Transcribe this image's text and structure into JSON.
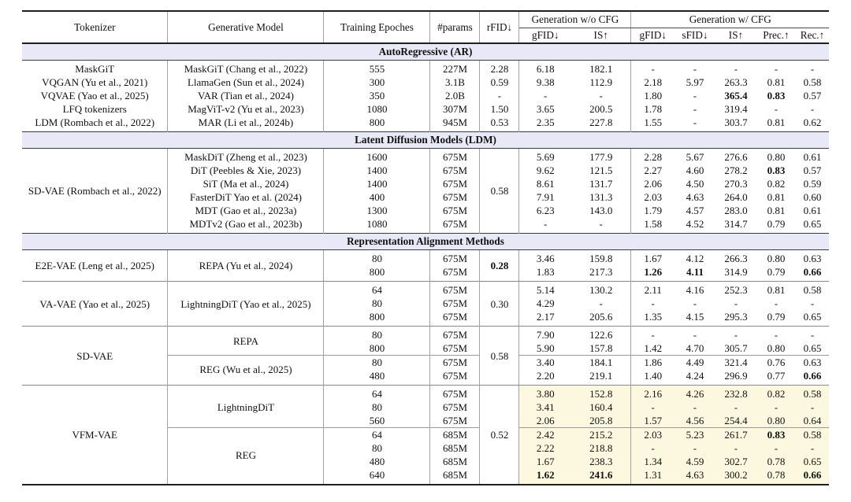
{
  "colors": {
    "section_band_bg": "#e8e8f7",
    "highlight_bg": "#fbf8df",
    "rule_dark": "#1f1f1f",
    "divider_gray": "#a3a3a3"
  },
  "table": {
    "header": {
      "col_tokenizer": "Tokenizer",
      "col_model": "Generative Model",
      "col_epochs": "Training Epoches",
      "col_params": "#params",
      "col_rfid": "rFID↓",
      "group_wo_cfg": "Generation w/o CFG",
      "group_w_cfg": "Generation w/ CFG",
      "sub_wo": [
        "gFID↓",
        "IS↑"
      ],
      "sub_w": [
        "gFID↓",
        "sFID↓",
        "IS↑",
        "Prec.↑",
        "Rec.↑"
      ]
    },
    "sections": [
      {
        "title": "AutoRegressive (AR)",
        "groups": [
          {
            "tokenizer": null,
            "rfid": null,
            "highlight": false,
            "block_seps": false,
            "blocks": [
              {
                "model": "MaskGiT (Chang et al., 2022)",
                "rows": [
                  {
                    "tokenizer": "MaskGiT",
                    "epochs": "555",
                    "params": "227M",
                    "rfid": "2.28",
                    "wo": [
                      "6.18",
                      "182.1"
                    ],
                    "w": [
                      "-",
                      "-",
                      "-",
                      "-",
                      "-"
                    ]
                  }
                ]
              },
              {
                "model": "LlamaGen (Sun et al., 2024)",
                "rows": [
                  {
                    "tokenizer": "VQGAN (Yu et al., 2021)",
                    "epochs": "300",
                    "params": "3.1B",
                    "rfid": "0.59",
                    "wo": [
                      "9.38",
                      "112.9"
                    ],
                    "w": [
                      "2.18",
                      "5.97",
                      "263.3",
                      "0.81",
                      "0.58"
                    ]
                  }
                ]
              },
              {
                "model": "VAR (Tian et al., 2024)",
                "rows": [
                  {
                    "tokenizer": "VQVAE (Yao et al., 2025)",
                    "epochs": "350",
                    "params": "2.0B",
                    "rfid": "-",
                    "wo": [
                      "-",
                      "-"
                    ],
                    "w": [
                      "1.80",
                      "-",
                      {
                        "v": "365.4",
                        "b": true
                      },
                      {
                        "v": "0.83",
                        "b": true
                      },
                      "0.57"
                    ]
                  }
                ]
              },
              {
                "model": "MagViT-v2 (Yu et al., 2023)",
                "rows": [
                  {
                    "tokenizer": "LFQ tokenizers",
                    "epochs": "1080",
                    "params": "307M",
                    "rfid": "1.50",
                    "wo": [
                      "3.65",
                      "200.5"
                    ],
                    "w": [
                      "1.78",
                      "-",
                      "319.4",
                      "-",
                      "-"
                    ]
                  }
                ]
              },
              {
                "model": "MAR (Li et al., 2024b)",
                "rows": [
                  {
                    "tokenizer": "LDM (Rombach et al., 2022)",
                    "epochs": "800",
                    "params": "945M",
                    "rfid": "0.53",
                    "wo": [
                      "2.35",
                      "227.8"
                    ],
                    "w": [
                      "1.55",
                      "-",
                      "303.7",
                      "0.81",
                      "0.62"
                    ]
                  }
                ]
              }
            ]
          }
        ]
      },
      {
        "title": "Latent Diffusion Models (LDM)",
        "groups": [
          {
            "tokenizer": "SD-VAE (Rombach et al., 2022)",
            "rfid": "0.58",
            "highlight": false,
            "block_seps": false,
            "blocks": [
              {
                "model": "MaskDiT (Zheng et al., 2023)",
                "rows": [
                  {
                    "epochs": "1600",
                    "params": "675M",
                    "wo": [
                      "5.69",
                      "177.9"
                    ],
                    "w": [
                      "2.28",
                      "5.67",
                      "276.6",
                      "0.80",
                      "0.61"
                    ]
                  }
                ]
              },
              {
                "model": "DiT (Peebles & Xie, 2023)",
                "rows": [
                  {
                    "epochs": "1400",
                    "params": "675M",
                    "wo": [
                      "9.62",
                      "121.5"
                    ],
                    "w": [
                      "2.27",
                      "4.60",
                      "278.2",
                      {
                        "v": "0.83",
                        "b": true
                      },
                      "0.57"
                    ]
                  }
                ]
              },
              {
                "model": "SiT (Ma et al., 2024)",
                "rows": [
                  {
                    "epochs": "1400",
                    "params": "675M",
                    "wo": [
                      "8.61",
                      "131.7"
                    ],
                    "w": [
                      "2.06",
                      "4.50",
                      "270.3",
                      "0.82",
                      "0.59"
                    ]
                  }
                ]
              },
              {
                "model": "FasterDiT Yao et al. (2024)",
                "rows": [
                  {
                    "epochs": "400",
                    "params": "675M",
                    "wo": [
                      "7.91",
                      "131.3"
                    ],
                    "w": [
                      "2.03",
                      "4.63",
                      "264.0",
                      "0.81",
                      "0.60"
                    ]
                  }
                ]
              },
              {
                "model": "MDT (Gao et al., 2023a)",
                "rows": [
                  {
                    "epochs": "1300",
                    "params": "675M",
                    "wo": [
                      "6.23",
                      "143.0"
                    ],
                    "w": [
                      "1.79",
                      "4.57",
                      "283.0",
                      "0.81",
                      "0.61"
                    ]
                  }
                ]
              },
              {
                "model": "MDTv2 (Gao et al., 2023b)",
                "rows": [
                  {
                    "epochs": "1080",
                    "params": "675M",
                    "wo": [
                      "-",
                      "-"
                    ],
                    "w": [
                      "1.58",
                      "4.52",
                      "314.7",
                      "0.79",
                      "0.65"
                    ]
                  }
                ]
              }
            ]
          }
        ]
      },
      {
        "title": "Representation Alignment Methods",
        "groups": [
          {
            "tokenizer": "E2E-VAE (Leng et al., 2025)",
            "rfid": {
              "v": "0.28",
              "b": true
            },
            "highlight": false,
            "block_seps": false,
            "blocks": [
              {
                "model": "REPA (Yu et al., 2024)",
                "rows": [
                  {
                    "epochs": "80",
                    "params": "675M",
                    "wo": [
                      "3.46",
                      "159.8"
                    ],
                    "w": [
                      "1.67",
                      "4.12",
                      "266.3",
                      "0.80",
                      "0.63"
                    ]
                  },
                  {
                    "epochs": "800",
                    "params": "675M",
                    "wo": [
                      "1.83",
                      "217.3"
                    ],
                    "w": [
                      {
                        "v": "1.26",
                        "b": true
                      },
                      {
                        "v": "4.11",
                        "b": true
                      },
                      "314.9",
                      "0.79",
                      {
                        "v": "0.66",
                        "b": true
                      }
                    ]
                  }
                ]
              }
            ]
          },
          {
            "tokenizer": "VA-VAE (Yao et al., 2025)",
            "rfid": "0.30",
            "highlight": false,
            "block_seps": false,
            "blocks": [
              {
                "model": "LightningDiT (Yao et al., 2025)",
                "rows": [
                  {
                    "epochs": "64",
                    "params": "675M",
                    "wo": [
                      "5.14",
                      "130.2"
                    ],
                    "w": [
                      "2.11",
                      "4.16",
                      "252.3",
                      "0.81",
                      "0.58"
                    ]
                  },
                  {
                    "epochs": "80",
                    "params": "675M",
                    "wo": [
                      "4.29",
                      "-"
                    ],
                    "w": [
                      "-",
                      "-",
                      "-",
                      "-",
                      "-"
                    ]
                  },
                  {
                    "epochs": "800",
                    "params": "675M",
                    "wo": [
                      "2.17",
                      "205.6"
                    ],
                    "w": [
                      "1.35",
                      "4.15",
                      "295.3",
                      "0.79",
                      "0.65"
                    ]
                  }
                ]
              }
            ]
          },
          {
            "tokenizer": "SD-VAE",
            "rfid": "0.58",
            "highlight": false,
            "block_seps": true,
            "blocks": [
              {
                "model": "REPA",
                "rows": [
                  {
                    "epochs": "80",
                    "params": "675M",
                    "wo": [
                      "7.90",
                      "122.6"
                    ],
                    "w": [
                      "-",
                      "-",
                      "-",
                      "-",
                      "-"
                    ]
                  },
                  {
                    "epochs": "800",
                    "params": "675M",
                    "wo": [
                      "5.90",
                      "157.8"
                    ],
                    "w": [
                      "1.42",
                      "4.70",
                      "305.7",
                      "0.80",
                      "0.65"
                    ]
                  }
                ]
              },
              {
                "model": "REG (Wu et al., 2025)",
                "rows": [
                  {
                    "epochs": "80",
                    "params": "675M",
                    "wo": [
                      "3.40",
                      "184.1"
                    ],
                    "w": [
                      "1.86",
                      "4.49",
                      "321.4",
                      "0.76",
                      "0.63"
                    ]
                  },
                  {
                    "epochs": "480",
                    "params": "675M",
                    "wo": [
                      "2.20",
                      "219.1"
                    ],
                    "w": [
                      "1.40",
                      "4.24",
                      "296.9",
                      "0.77",
                      {
                        "v": "0.66",
                        "b": true
                      }
                    ]
                  }
                ]
              }
            ]
          },
          {
            "tokenizer": "VFM-VAE",
            "rfid": "0.52",
            "highlight": true,
            "block_seps": true,
            "blocks": [
              {
                "model": "LightningDiT",
                "rows": [
                  {
                    "epochs": "64",
                    "params": "675M",
                    "wo": [
                      "3.80",
                      "152.8"
                    ],
                    "w": [
                      "2.16",
                      "4.26",
                      "232.8",
                      "0.82",
                      "0.58"
                    ]
                  },
                  {
                    "epochs": "80",
                    "params": "675M",
                    "wo": [
                      "3.41",
                      "160.4"
                    ],
                    "w": [
                      "-",
                      "-",
                      "-",
                      "-",
                      "-"
                    ]
                  },
                  {
                    "epochs": "560",
                    "params": "675M",
                    "wo": [
                      "2.06",
                      "205.8"
                    ],
                    "w": [
                      "1.57",
                      "4.56",
                      "254.4",
                      "0.80",
                      "0.64"
                    ]
                  }
                ]
              },
              {
                "model": "REG",
                "rows": [
                  {
                    "epochs": "64",
                    "params": "685M",
                    "wo": [
                      "2.42",
                      "215.2"
                    ],
                    "w": [
                      "2.03",
                      "5.23",
                      "261.7",
                      {
                        "v": "0.83",
                        "b": true
                      },
                      "0.58"
                    ]
                  },
                  {
                    "epochs": "80",
                    "params": "685M",
                    "wo": [
                      "2.22",
                      "218.8"
                    ],
                    "w": [
                      "-",
                      "-",
                      "-",
                      "-",
                      "-"
                    ]
                  },
                  {
                    "epochs": "480",
                    "params": "685M",
                    "wo": [
                      "1.67",
                      "238.3"
                    ],
                    "w": [
                      "1.34",
                      "4.59",
                      "302.7",
                      "0.78",
                      "0.65"
                    ]
                  },
                  {
                    "epochs": "640",
                    "params": "685M",
                    "wo": [
                      {
                        "v": "1.62",
                        "b": true
                      },
                      {
                        "v": "241.6",
                        "b": true
                      }
                    ],
                    "w": [
                      "1.31",
                      "4.63",
                      "300.2",
                      "0.78",
                      {
                        "v": "0.66",
                        "b": true
                      }
                    ]
                  }
                ]
              }
            ]
          }
        ]
      }
    ]
  }
}
